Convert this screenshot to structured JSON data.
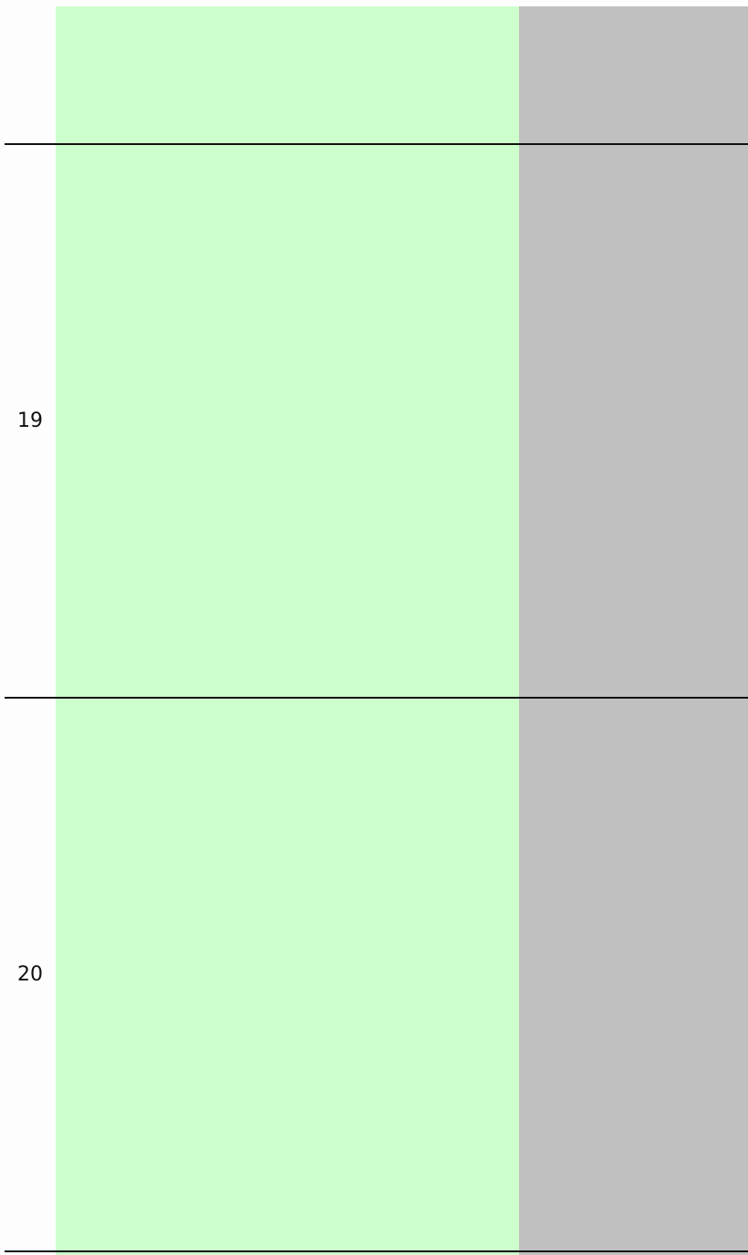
{
  "rows": [
    {
      "label": "19"
    },
    {
      "label": "20"
    }
  ]
}
